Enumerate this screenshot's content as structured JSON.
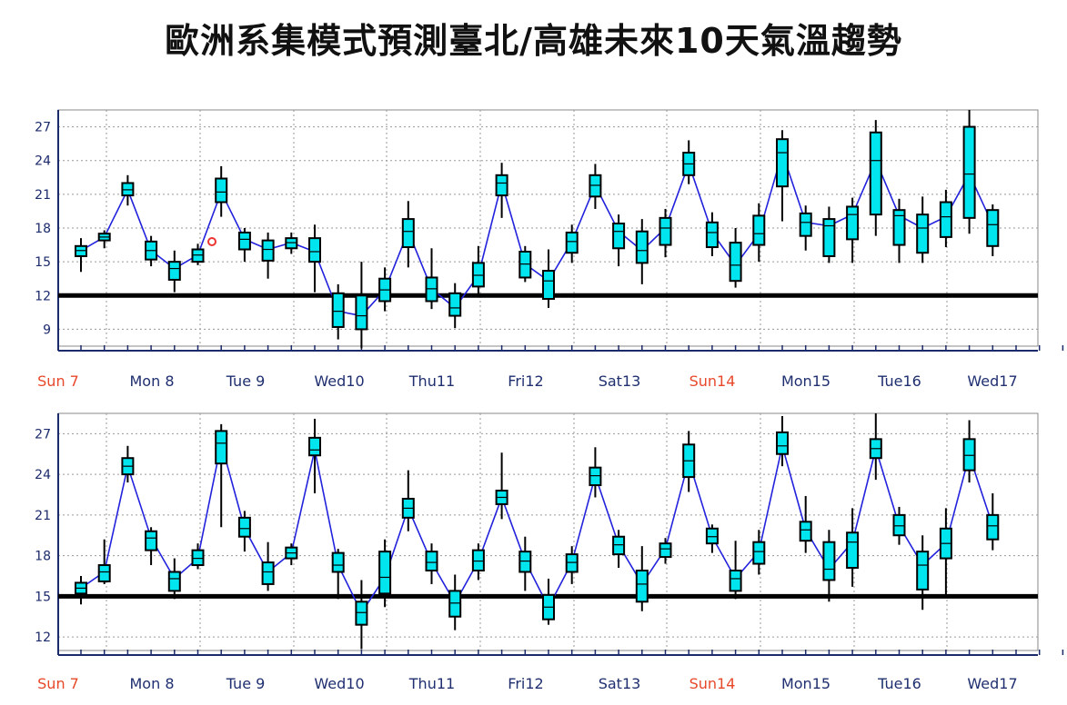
{
  "title": "歐洲系集模式預測臺北/高雄未來10天氣溫趨勢",
  "colors": {
    "box": "#00e5ee",
    "line": "#2222dd",
    "weekday": "#1f2f6f",
    "sunday": "#e8482a",
    "threshold": "#000000",
    "grid": "#9a9a9a"
  },
  "day_labels": [
    "Sun 7",
    "Mon 8",
    "Tue 9",
    "Wed10",
    "Thu11",
    "Fri12",
    "Sat13",
    "Sun14",
    "Mon15",
    "Tue16",
    "Wed17"
  ],
  "sunday_labels": [
    "Sun 7",
    "Sun14"
  ],
  "chart_data": [
    {
      "type": "box",
      "location": "Taipei",
      "yticks": [
        9,
        12,
        15,
        18,
        21,
        24,
        27
      ],
      "ylim": [
        7.5,
        28.5
      ],
      "threshold": 12,
      "grid": true,
      "boxes": [
        {
          "w": 14.1,
          "q1": 15.5,
          "med": 16.0,
          "q3": 16.4,
          "wh": 17.1,
          "m": 16.0
        },
        {
          "w": 16.2,
          "q1": 16.9,
          "med": 17.2,
          "q3": 17.5,
          "wh": 17.8,
          "m": 17.2
        },
        {
          "w": 20.0,
          "q1": 20.9,
          "med": 21.4,
          "q3": 22.0,
          "wh": 22.7,
          "m": 21.4
        },
        {
          "w": 14.6,
          "q1": 15.2,
          "med": 16.0,
          "q3": 16.8,
          "wh": 17.3,
          "m": 16.0
        },
        {
          "w": 12.3,
          "q1": 13.4,
          "med": 14.4,
          "q3": 15.0,
          "wh": 16.0,
          "m": 14.4
        },
        {
          "w": 14.7,
          "q1": 15.0,
          "med": 15.6,
          "q3": 16.1,
          "wh": 16.6,
          "m": 15.6
        },
        {
          "w": 19.0,
          "q1": 20.3,
          "med": 21.2,
          "q3": 22.4,
          "wh": 23.5,
          "m": 21.2
        },
        {
          "w": 15.0,
          "q1": 16.1,
          "med": 17.0,
          "q3": 17.6,
          "wh": 18.0,
          "m": 17.0
        },
        {
          "w": 13.5,
          "q1": 15.1,
          "med": 16.1,
          "q3": 16.9,
          "wh": 17.6,
          "m": 16.1
        },
        {
          "w": 15.7,
          "q1": 16.2,
          "med": 16.7,
          "q3": 17.1,
          "wh": 17.6,
          "m": 16.7
        },
        {
          "w": 12.3,
          "q1": 15.0,
          "med": 15.9,
          "q3": 17.1,
          "wh": 18.3,
          "m": 15.9
        },
        {
          "w": 8.1,
          "q1": 9.2,
          "med": 10.6,
          "q3": 12.2,
          "wh": 13.0,
          "m": 10.6
        },
        {
          "w": 7.3,
          "q1": 9.0,
          "med": 10.2,
          "q3": 12.0,
          "wh": 15.0,
          "m": 10.2
        },
        {
          "w": 10.6,
          "q1": 11.5,
          "med": 12.5,
          "q3": 13.5,
          "wh": 14.5,
          "m": 12.5
        },
        {
          "w": 14.5,
          "q1": 16.3,
          "med": 17.7,
          "q3": 18.8,
          "wh": 20.4,
          "m": 17.7
        },
        {
          "w": 10.8,
          "q1": 11.5,
          "med": 12.6,
          "q3": 13.6,
          "wh": 16.2,
          "m": 12.6
        },
        {
          "w": 9.1,
          "q1": 10.2,
          "med": 10.9,
          "q3": 12.2,
          "wh": 13.1,
          "m": 10.9
        },
        {
          "w": 12.0,
          "q1": 12.8,
          "med": 13.8,
          "q3": 14.9,
          "wh": 16.4,
          "m": 13.8
        },
        {
          "w": 18.9,
          "q1": 20.9,
          "med": 22.0,
          "q3": 22.7,
          "wh": 23.8,
          "m": 22.0
        },
        {
          "w": 13.2,
          "q1": 13.6,
          "med": 14.8,
          "q3": 15.9,
          "wh": 16.4,
          "m": 14.8
        },
        {
          "w": 10.9,
          "q1": 11.7,
          "med": 13.3,
          "q3": 14.2,
          "wh": 16.1,
          "m": 13.3
        },
        {
          "w": 14.9,
          "q1": 15.8,
          "med": 16.8,
          "q3": 17.6,
          "wh": 18.3,
          "m": 16.8
        },
        {
          "w": 19.7,
          "q1": 20.8,
          "med": 21.8,
          "q3": 22.7,
          "wh": 23.7,
          "m": 21.8
        },
        {
          "w": 14.6,
          "q1": 16.2,
          "med": 17.7,
          "q3": 18.4,
          "wh": 19.2,
          "m": 17.7
        },
        {
          "w": 13.0,
          "q1": 14.9,
          "med": 16.0,
          "q3": 17.7,
          "wh": 18.8,
          "m": 16.0
        },
        {
          "w": 15.4,
          "q1": 16.5,
          "med": 18.0,
          "q3": 18.9,
          "wh": 19.7,
          "m": 18.0
        },
        {
          "w": 21.9,
          "q1": 22.7,
          "med": 23.7,
          "q3": 24.7,
          "wh": 25.8,
          "m": 23.7
        },
        {
          "w": 15.5,
          "q1": 16.3,
          "med": 17.6,
          "q3": 18.5,
          "wh": 19.4,
          "m": 17.6
        },
        {
          "w": 12.7,
          "q1": 13.3,
          "med": 14.7,
          "q3": 16.7,
          "wh": 18.0,
          "m": 14.7
        },
        {
          "w": 15.0,
          "q1": 16.5,
          "med": 17.5,
          "q3": 19.1,
          "wh": 20.2,
          "m": 17.5
        },
        {
          "w": 18.6,
          "q1": 21.7,
          "med": 24.7,
          "q3": 25.9,
          "wh": 26.7,
          "m": 24.7
        },
        {
          "w": 16.0,
          "q1": 17.3,
          "med": 18.5,
          "q3": 19.3,
          "wh": 20.0,
          "m": 18.5
        },
        {
          "w": 14.9,
          "q1": 15.5,
          "med": 18.2,
          "q3": 18.8,
          "wh": 19.9,
          "m": 18.2
        },
        {
          "w": 14.9,
          "q1": 17.0,
          "med": 19.2,
          "q3": 19.9,
          "wh": 20.7,
          "m": 19.2
        },
        {
          "w": 17.3,
          "q1": 19.2,
          "med": 24.0,
          "q3": 26.5,
          "wh": 27.6,
          "m": 24.0
        },
        {
          "w": 14.9,
          "q1": 16.5,
          "med": 19.1,
          "q3": 19.6,
          "wh": 20.6,
          "m": 19.1
        },
        {
          "w": 14.9,
          "q1": 15.8,
          "med": 18.0,
          "q3": 19.2,
          "wh": 20.8,
          "m": 18.0
        },
        {
          "w": 16.3,
          "q1": 17.2,
          "med": 19.0,
          "q3": 20.3,
          "wh": 21.4,
          "m": 19.0
        },
        {
          "w": 17.5,
          "q1": 18.9,
          "med": 22.8,
          "q3": 27.0,
          "wh": 28.5,
          "m": 22.8
        },
        {
          "w": 15.5,
          "q1": 16.4,
          "med": 18.3,
          "q3": 19.6,
          "wh": 20.1,
          "m": 18.3
        }
      ]
    },
    {
      "type": "box",
      "location": "Kaohsiung",
      "yticks": [
        12,
        15,
        18,
        21,
        24,
        27
      ],
      "ylim": [
        11.0,
        28.5
      ],
      "threshold": 15,
      "grid": true,
      "boxes": [
        {
          "w": 14.4,
          "q1": 15.2,
          "med": 15.6,
          "q3": 16.0,
          "wh": 16.5,
          "m": 15.6
        },
        {
          "w": 15.9,
          "q1": 16.1,
          "med": 16.8,
          "q3": 17.3,
          "wh": 19.2,
          "m": 16.8
        },
        {
          "w": 23.4,
          "q1": 24.0,
          "med": 24.6,
          "q3": 25.2,
          "wh": 26.1,
          "m": 24.6
        },
        {
          "w": 17.3,
          "q1": 18.4,
          "med": 19.3,
          "q3": 19.8,
          "wh": 20.1,
          "m": 19.3
        },
        {
          "w": 14.8,
          "q1": 15.4,
          "med": 16.3,
          "q3": 16.8,
          "wh": 17.8,
          "m": 16.3
        },
        {
          "w": 17.0,
          "q1": 17.3,
          "med": 17.8,
          "q3": 18.4,
          "wh": 18.9,
          "m": 17.8
        },
        {
          "w": 20.1,
          "q1": 24.8,
          "med": 26.3,
          "q3": 27.2,
          "wh": 27.7,
          "m": 26.3
        },
        {
          "w": 18.3,
          "q1": 19.4,
          "med": 20.0,
          "q3": 20.8,
          "wh": 21.3,
          "m": 20.0
        },
        {
          "w": 15.4,
          "q1": 15.9,
          "med": 16.8,
          "q3": 17.5,
          "wh": 19.0,
          "m": 16.8
        },
        {
          "w": 17.3,
          "q1": 17.8,
          "med": 18.2,
          "q3": 18.6,
          "wh": 18.9,
          "m": 18.2
        },
        {
          "w": 22.6,
          "q1": 25.4,
          "med": 25.8,
          "q3": 26.7,
          "wh": 28.1,
          "m": 25.8
        },
        {
          "w": 14.8,
          "q1": 16.8,
          "med": 17.3,
          "q3": 18.2,
          "wh": 18.5,
          "m": 17.3
        },
        {
          "w": 11.1,
          "q1": 12.9,
          "med": 13.8,
          "q3": 14.6,
          "wh": 16.2,
          "m": 13.8
        },
        {
          "w": 14.2,
          "q1": 15.2,
          "med": 16.4,
          "q3": 18.3,
          "wh": 19.2,
          "m": 16.4
        },
        {
          "w": 19.8,
          "q1": 20.8,
          "med": 21.5,
          "q3": 22.2,
          "wh": 24.3,
          "m": 21.5
        },
        {
          "w": 15.9,
          "q1": 16.9,
          "med": 17.5,
          "q3": 18.3,
          "wh": 18.9,
          "m": 17.5
        },
        {
          "w": 12.5,
          "q1": 13.5,
          "med": 14.5,
          "q3": 15.4,
          "wh": 16.6,
          "m": 14.5
        },
        {
          "w": 16.2,
          "q1": 16.9,
          "med": 17.6,
          "q3": 18.4,
          "wh": 18.9,
          "m": 17.6
        },
        {
          "w": 20.7,
          "q1": 21.8,
          "med": 22.3,
          "q3": 22.8,
          "wh": 25.6,
          "m": 22.3
        },
        {
          "w": 15.4,
          "q1": 16.8,
          "med": 17.6,
          "q3": 18.3,
          "wh": 19.4,
          "m": 17.6
        },
        {
          "w": 12.9,
          "q1": 13.3,
          "med": 14.2,
          "q3": 15.1,
          "wh": 16.3,
          "m": 14.2
        },
        {
          "w": 15.9,
          "q1": 16.8,
          "med": 17.5,
          "q3": 18.1,
          "wh": 18.7,
          "m": 17.5
        },
        {
          "w": 22.3,
          "q1": 23.2,
          "med": 23.9,
          "q3": 24.5,
          "wh": 26.0,
          "m": 23.9
        },
        {
          "w": 17.1,
          "q1": 18.1,
          "med": 18.8,
          "q3": 19.4,
          "wh": 19.9,
          "m": 18.8
        },
        {
          "w": 13.9,
          "q1": 14.6,
          "med": 15.9,
          "q3": 16.9,
          "wh": 18.7,
          "m": 15.9
        },
        {
          "w": 17.4,
          "q1": 17.9,
          "med": 18.5,
          "q3": 18.9,
          "wh": 19.3,
          "m": 18.5
        },
        {
          "w": 22.7,
          "q1": 23.8,
          "med": 25.0,
          "q3": 26.2,
          "wh": 27.2,
          "m": 25.0
        },
        {
          "w": 18.2,
          "q1": 18.9,
          "med": 19.4,
          "q3": 20.0,
          "wh": 20.3,
          "m": 19.4
        },
        {
          "w": 14.8,
          "q1": 15.4,
          "med": 16.3,
          "q3": 16.9,
          "wh": 19.1,
          "m": 16.3
        },
        {
          "w": 16.6,
          "q1": 17.4,
          "med": 18.3,
          "q3": 19.0,
          "wh": 19.9,
          "m": 18.3
        },
        {
          "w": 24.6,
          "q1": 25.5,
          "med": 26.1,
          "q3": 27.1,
          "wh": 28.3,
          "m": 26.1
        },
        {
          "w": 18.2,
          "q1": 19.1,
          "med": 19.9,
          "q3": 20.5,
          "wh": 22.4,
          "m": 19.9
        },
        {
          "w": 14.6,
          "q1": 16.2,
          "med": 17.0,
          "q3": 19.0,
          "wh": 19.9,
          "m": 17.0
        },
        {
          "w": 15.7,
          "q1": 17.1,
          "med": 19.0,
          "q3": 19.7,
          "wh": 21.5,
          "m": 19.0
        },
        {
          "w": 23.6,
          "q1": 25.2,
          "med": 25.9,
          "q3": 26.6,
          "wh": 28.5,
          "m": 25.9
        },
        {
          "w": 18.8,
          "q1": 19.5,
          "med": 20.2,
          "q3": 21.0,
          "wh": 21.6,
          "m": 20.2
        },
        {
          "w": 14.0,
          "q1": 15.5,
          "med": 17.3,
          "q3": 18.3,
          "wh": 19.5,
          "m": 17.3
        },
        {
          "w": 15.1,
          "q1": 17.8,
          "med": 18.9,
          "q3": 20.0,
          "wh": 21.5,
          "m": 18.9
        },
        {
          "w": 23.4,
          "q1": 24.3,
          "med": 25.4,
          "q3": 26.6,
          "wh": 28.0,
          "m": 25.4
        },
        {
          "w": 18.4,
          "q1": 19.2,
          "med": 20.2,
          "q3": 21.0,
          "wh": 22.6,
          "m": 20.2
        }
      ]
    }
  ]
}
